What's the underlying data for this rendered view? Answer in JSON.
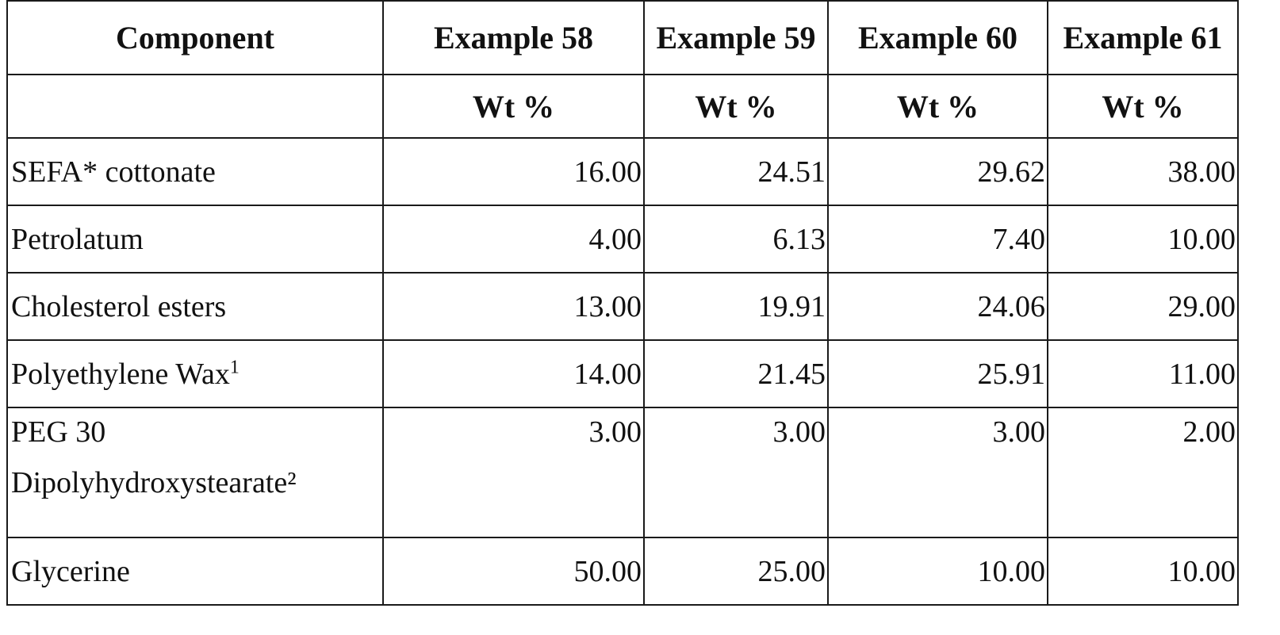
{
  "table": {
    "headers": [
      "Component",
      "Example 58",
      "Example 59",
      "Example 60",
      "Example 61"
    ],
    "subheaders": [
      "",
      "Wt %",
      "Wt %",
      "Wt %",
      "Wt %"
    ],
    "rows": [
      {
        "name": "SEFA* cottonate",
        "name_sup": "",
        "name_line2": "",
        "values": [
          "16.00",
          "24.51",
          "29.62",
          "38.00"
        ]
      },
      {
        "name": "Petrolatum",
        "name_sup": "",
        "name_line2": "",
        "values": [
          "4.00",
          "6.13",
          "7.40",
          "10.00"
        ]
      },
      {
        "name": "Cholesterol esters",
        "name_sup": "",
        "name_line2": "",
        "values": [
          "13.00",
          "19.91",
          "24.06",
          "29.00"
        ]
      },
      {
        "name": "Polyethylene Wax",
        "name_sup": "1",
        "name_line2": "",
        "values": [
          "14.00",
          "21.45",
          "25.91",
          "11.00"
        ]
      },
      {
        "name": "PEG 30",
        "name_sup": "",
        "name_line2": "Dipolyhydroxystearate²",
        "values": [
          "3.00",
          "3.00",
          "3.00",
          "2.00"
        ]
      },
      {
        "name": "Glycerine",
        "name_sup": "",
        "name_line2": "",
        "values": [
          "50.00",
          "25.00",
          "10.00",
          "10.00"
        ]
      }
    ]
  }
}
